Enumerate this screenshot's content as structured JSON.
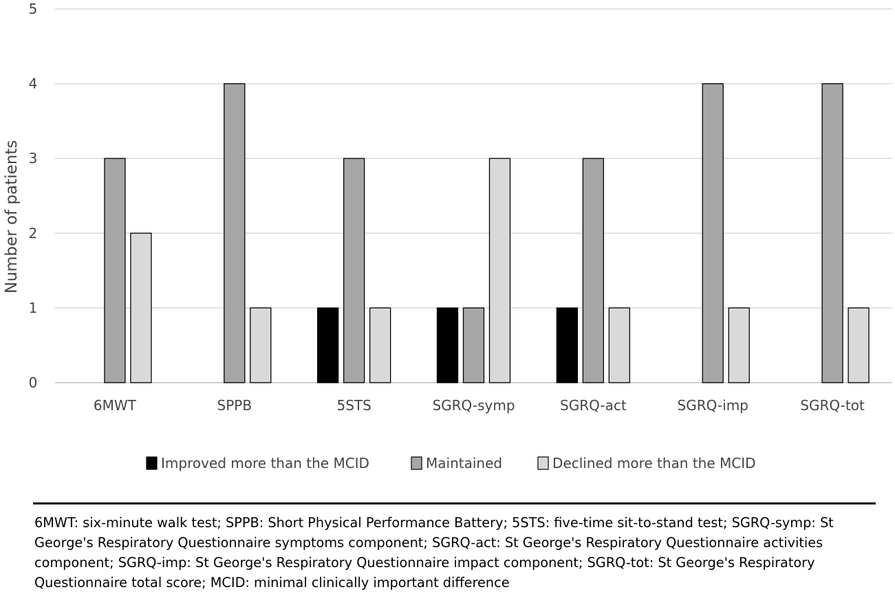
{
  "chart_data": {
    "type": "bar",
    "ylabel": "Number of patients",
    "xlabel": "",
    "ylim": [
      0,
      5
    ],
    "yticks": [
      0,
      1,
      2,
      3,
      4,
      5
    ],
    "grid": true,
    "legend_position": "bottom",
    "categories": [
      "6MWT",
      "SPPB",
      "5STS",
      "SGRQ-symp",
      "SGRQ-act",
      "SGRQ-imp",
      "SGRQ-tot"
    ],
    "series": [
      {
        "name": "Improved more than the MCID",
        "color": "#000000",
        "values": [
          0,
          0,
          1,
          1,
          1,
          0,
          0
        ]
      },
      {
        "name": "Maintained",
        "color": "#a6a6a6",
        "values": [
          3,
          4,
          3,
          1,
          3,
          4,
          4
        ]
      },
      {
        "name": "Declined more than the MCID",
        "color": "#d9d9d9",
        "values": [
          2,
          1,
          1,
          3,
          1,
          1,
          1
        ]
      }
    ]
  },
  "footnote": "6MWT: six-minute walk test; SPPB: Short Physical Performance Battery; 5STS: five-time sit-to-stand test; SGRQ-symp: St George's Respiratory Questionnaire symptoms component; SGRQ-act: St George's Respiratory Questionnaire activities component; SGRQ-imp: St George's Respiratory Questionnaire impact component; SGRQ-tot: St George's Respiratory Questionnaire total score; MCID: minimal clinically important difference"
}
